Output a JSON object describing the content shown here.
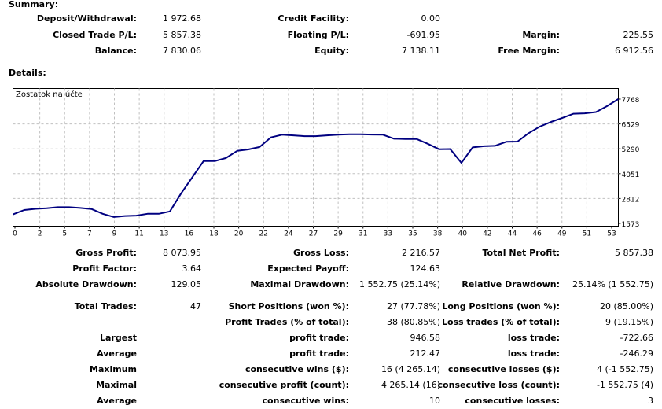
{
  "summary": {
    "title": "Summary:",
    "rows": [
      [
        [
          "Deposit/Withdrawal:",
          "1 972.68"
        ],
        [
          "Credit Facility:",
          "0.00"
        ],
        [
          "",
          ""
        ]
      ],
      [
        [
          "Closed Trade P/L:",
          "5 857.38"
        ],
        [
          "Floating P/L:",
          "-691.95"
        ],
        [
          "Margin:",
          "225.55"
        ]
      ],
      [
        [
          "Balance:",
          "7 830.06"
        ],
        [
          "Equity:",
          "7 138.11"
        ],
        [
          "Free Margin:",
          "6 912.56"
        ]
      ]
    ]
  },
  "details": {
    "title": "Details:",
    "rows": [
      [
        [
          "Gross Profit:",
          "8 073.95"
        ],
        [
          "Gross Loss:",
          "2 216.57"
        ],
        [
          "Total Net Profit:",
          "5 857.38"
        ]
      ],
      [
        [
          "Profit Factor:",
          "3.64"
        ],
        [
          "Expected Payoff:",
          "124.63"
        ],
        [
          "",
          ""
        ]
      ],
      [
        [
          "Absolute Drawdown:",
          "129.05"
        ],
        [
          "Maximal Drawdown:",
          "1 552.75 (25.14%)"
        ],
        [
          "Relative Drawdown:",
          "25.14% (1 552.75)"
        ]
      ],
      [
        [
          "Total Trades:",
          "47"
        ],
        [
          "Short Positions (won %):",
          "27 (77.78%)"
        ],
        [
          "Long Positions (won %):",
          "20 (85.00%)"
        ]
      ],
      [
        [
          "",
          ""
        ],
        [
          "Profit Trades (% of total):",
          "38 (80.85%)"
        ],
        [
          "Loss trades (% of total):",
          "9 (19.15%)"
        ]
      ],
      [
        [
          "Largest",
          ""
        ],
        [
          "profit trade:",
          "946.58"
        ],
        [
          "loss trade:",
          "-722.66"
        ]
      ],
      [
        [
          "Average",
          ""
        ],
        [
          "profit trade:",
          "212.47"
        ],
        [
          "loss trade:",
          "-246.29"
        ]
      ],
      [
        [
          "Maximum",
          ""
        ],
        [
          "consecutive wins ($):",
          "16 (4 265.14)"
        ],
        [
          "consecutive losses ($):",
          "4 (-1 552.75)"
        ]
      ],
      [
        [
          "Maximal",
          ""
        ],
        [
          "consecutive profit (count):",
          "4 265.14 (16)"
        ],
        [
          "consecutive loss (count):",
          "-1 552.75 (4)"
        ]
      ],
      [
        [
          "Average",
          ""
        ],
        [
          "consecutive wins:",
          "10"
        ],
        [
          "consecutive losses:",
          "3"
        ]
      ]
    ]
  },
  "chart_data": {
    "type": "line",
    "title": "Zostatok na účte",
    "line_color": "#000080",
    "x_ticks": [
      "0",
      "2",
      "5",
      "7",
      "9",
      "11",
      "13",
      "16",
      "18",
      "20",
      "22",
      "24",
      "27",
      "29",
      "31",
      "33",
      "35",
      "38",
      "40",
      "42",
      "44",
      "46",
      "49",
      "51",
      "53"
    ],
    "y_ticks": [
      "7768",
      "6529",
      "5290",
      "4051",
      "2812",
      "1573"
    ],
    "ylim": [
      1573,
      7768
    ],
    "grid": true,
    "x": [
      0,
      1,
      2,
      3,
      4,
      5,
      6,
      7,
      8,
      9,
      10,
      11,
      12,
      13,
      14,
      15,
      16,
      17,
      18,
      19,
      20,
      21,
      22,
      23,
      24,
      25,
      26,
      27,
      28,
      29,
      30,
      31,
      32,
      33,
      34,
      35,
      36,
      37,
      38,
      39,
      40,
      41,
      42,
      43,
      44,
      45,
      46,
      47,
      48,
      49,
      50,
      51,
      52,
      53,
      54
    ],
    "values": [
      2020,
      2240,
      2300,
      2330,
      2380,
      2380,
      2340,
      2290,
      2050,
      1890,
      1940,
      1960,
      2050,
      2050,
      2170,
      3070,
      3870,
      4680,
      4680,
      4830,
      5190,
      5260,
      5380,
      5860,
      5990,
      5960,
      5920,
      5920,
      5960,
      5990,
      6010,
      6010,
      6000,
      5990,
      5790,
      5780,
      5780,
      5540,
      5270,
      5280,
      4590,
      5360,
      5420,
      5440,
      5640,
      5650,
      6070,
      6400,
      6630,
      6830,
      7040,
      7060,
      7120,
      7420,
      7770
    ]
  }
}
